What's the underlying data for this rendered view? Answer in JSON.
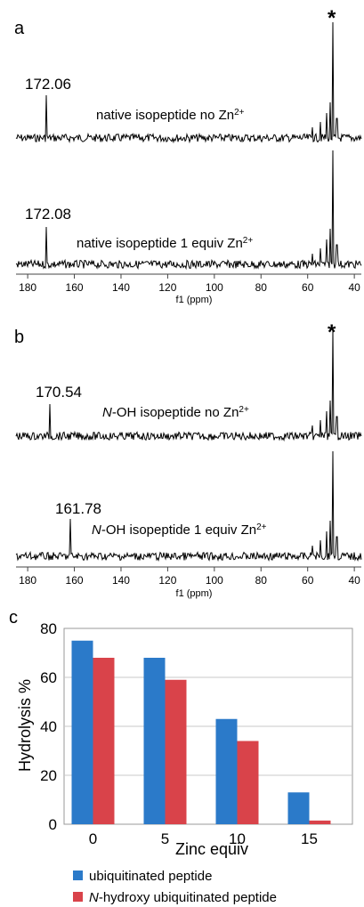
{
  "panels": [
    {
      "letter": "a",
      "x_axis": {
        "label": "f1 (ppm)",
        "ticks": [
          180,
          160,
          140,
          120,
          100,
          80,
          60,
          40
        ],
        "range": [
          185,
          37
        ]
      },
      "star": "*",
      "spectra": [
        {
          "peak_label": "172.06",
          "caption_pre": "native isopeptide no Zn",
          "caption_sup": "2+",
          "peak_ppm": 172.06
        },
        {
          "peak_label": "172.08",
          "caption_pre": "native isopeptide 1 equiv Zn",
          "caption_sup": "2+",
          "peak_ppm": 172.08
        }
      ]
    },
    {
      "letter": "b",
      "x_axis": {
        "label": "f1 (ppm)",
        "ticks": [
          180,
          160,
          140,
          120,
          100,
          80,
          60,
          40
        ],
        "range": [
          185,
          37
        ]
      },
      "star": "*",
      "spectra": [
        {
          "peak_label": "170.54",
          "caption_italic": "N",
          "caption_pre": "-OH isopeptide no Zn",
          "caption_sup": "2+",
          "peak_ppm": 170.54
        },
        {
          "peak_label": "161.78",
          "caption_italic": "N",
          "caption_pre": "-OH isopeptide 1 equiv Zn",
          "caption_sup": "2+",
          "peak_ppm": 161.78
        }
      ]
    }
  ],
  "chart_data": {
    "letter": "c",
    "type": "bar",
    "categories": [
      "0",
      "5",
      "10",
      "15"
    ],
    "series": [
      {
        "name": "ubiquitinated peptide",
        "values": [
          75,
          68,
          43,
          13
        ],
        "color": "#2b7ac9"
      },
      {
        "name": "-hydroxy ubiquitinated peptide",
        "name_italic_prefix": "N",
        "values": [
          68,
          59,
          34,
          1.5
        ],
        "color": "#d9434a"
      }
    ],
    "xlabel": "Zinc equiv",
    "ylabel": "Hydrolysis %",
    "ylim": [
      0,
      80
    ],
    "yticks": [
      0,
      20,
      40,
      60,
      80
    ],
    "grid": true,
    "legend_placement": "bottom"
  }
}
